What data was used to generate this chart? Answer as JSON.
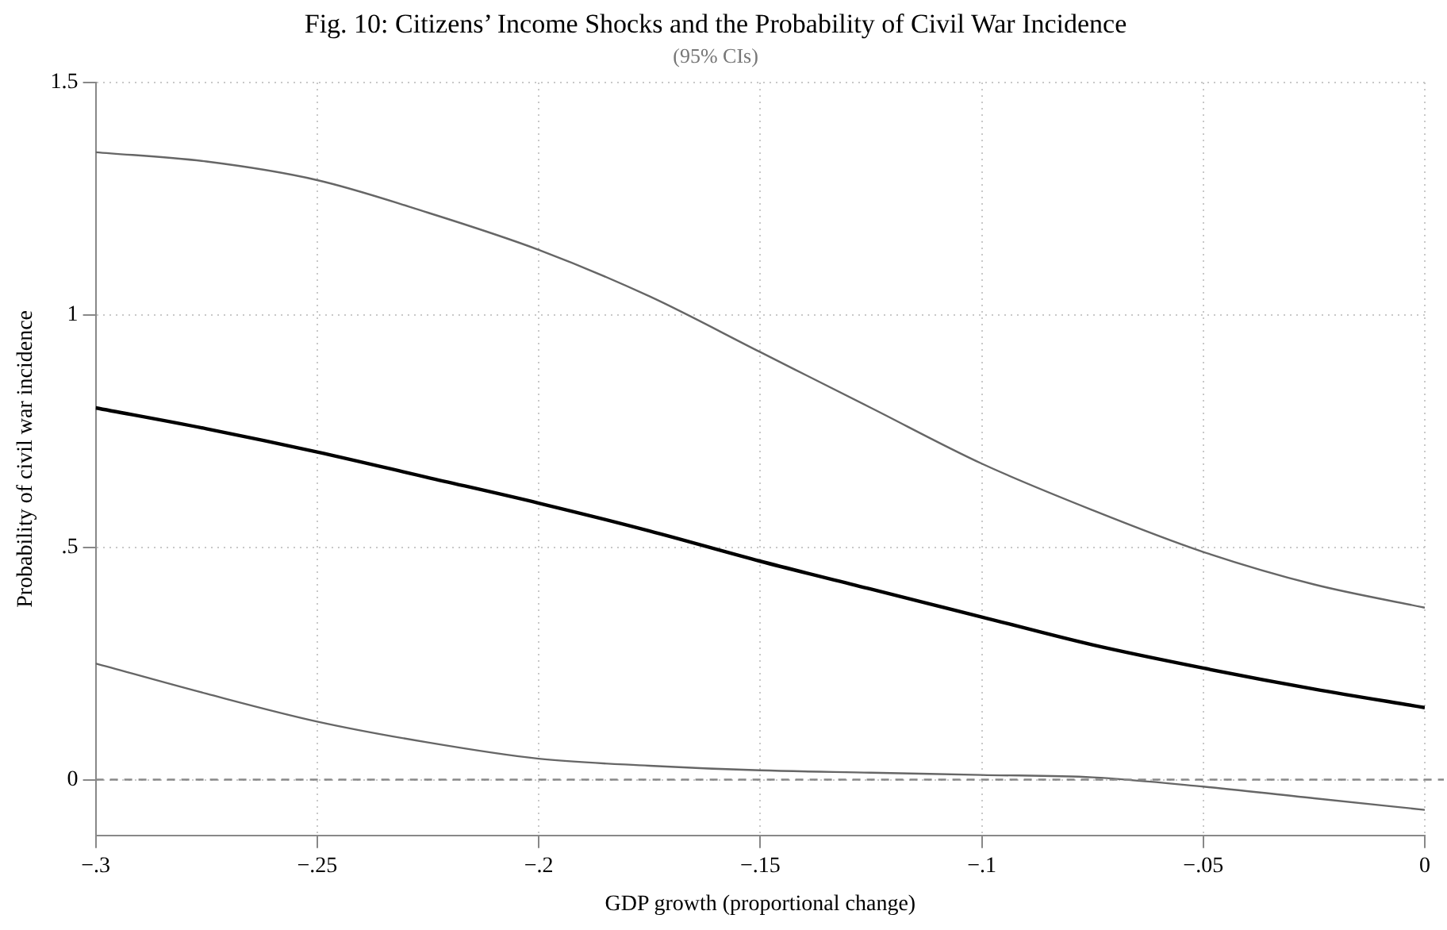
{
  "chart_data": {
    "type": "line",
    "title": "Fig. 10: Citizens’ Income Shocks and the Probability of Civil War Incidence",
    "subtitle": "(95% CIs)",
    "xlabel": "GDP growth (proportional change)",
    "ylabel": "Probability of civil war incidence",
    "x": [
      -0.3,
      -0.275,
      -0.25,
      -0.225,
      -0.2,
      -0.175,
      -0.15,
      -0.125,
      -0.1,
      -0.075,
      -0.05,
      -0.025,
      0
    ],
    "series": [
      {
        "color": "#666666",
        "values": [
          1.35,
          1.33,
          1.29,
          1.22,
          1.14,
          1.04,
          0.92,
          0.8,
          0.68,
          0.58,
          0.49,
          0.42,
          0.37
        ]
      },
      {
        "color": "#000000",
        "values": [
          0.8,
          0.755,
          0.705,
          0.65,
          0.595,
          0.535,
          0.47,
          0.41,
          0.35,
          0.29,
          0.24,
          0.195,
          0.155
        ]
      },
      {
        "color": "#666666",
        "values": [
          0.25,
          0.185,
          0.125,
          0.08,
          0.045,
          0.03,
          0.02,
          0.015,
          0.01,
          0.005,
          -0.015,
          -0.04,
          -0.065
        ]
      }
    ],
    "xlim": [
      -0.3,
      0
    ],
    "ylim": [
      -0.12,
      1.5
    ],
    "xticks": [
      {
        "value": -0.3,
        "label": "−.3"
      },
      {
        "value": -0.25,
        "label": "−.25"
      },
      {
        "value": -0.2,
        "label": "−.2"
      },
      {
        "value": -0.15,
        "label": "−.15"
      },
      {
        "value": -0.1,
        "label": "−.1"
      },
      {
        "value": -0.05,
        "label": "−.05"
      },
      0
    ],
    "yticks": [
      0,
      {
        "value": 0.5,
        "label": ".5"
      },
      1,
      1.5
    ],
    "ref_lines": [
      {
        "axis": "y",
        "value": 0,
        "color": "#888888",
        "line_style": "dashed"
      }
    ],
    "grid": true,
    "legend": false,
    "marker": "none",
    "line_style": "solid"
  }
}
